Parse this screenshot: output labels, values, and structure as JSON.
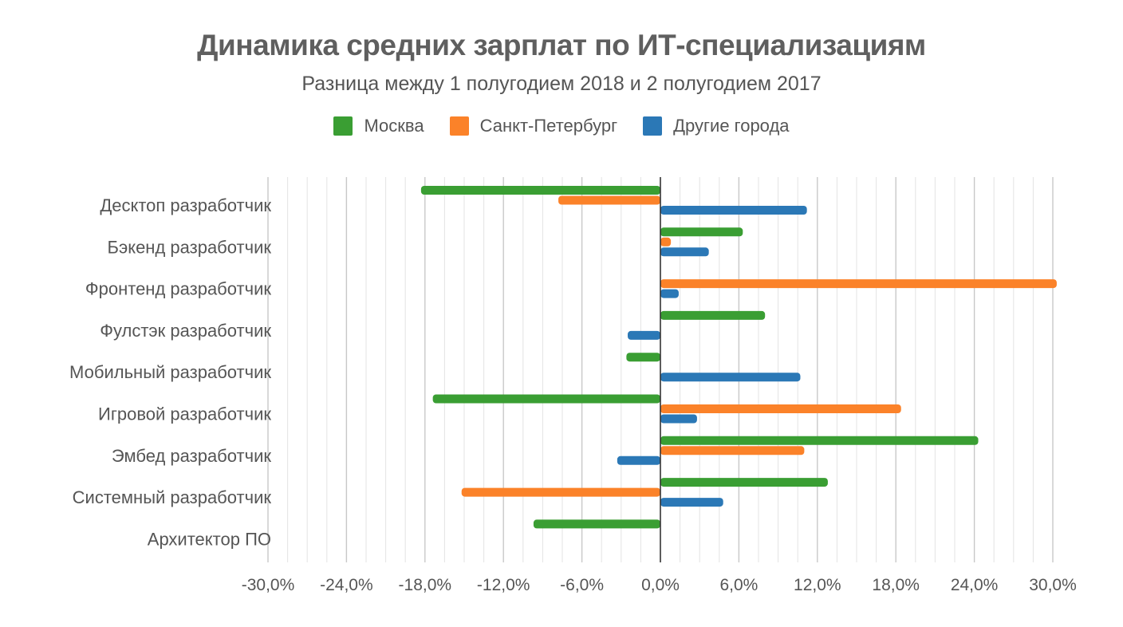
{
  "chart_data": {
    "type": "bar",
    "orientation": "horizontal",
    "title": "Динамика средних зарплат по ИТ-специализациям",
    "subtitle": "Разница между 1 полугодием 2018 и 2 полугодием 2017",
    "categories": [
      "Десктоп разработчик",
      "Бэкенд разработчик",
      "Фронтенд разработчик",
      "Фулстэк разработчик",
      "Мобильный разработчик",
      "Игровой разработчик",
      "Эмбед разработчик",
      "Системный разработчик",
      "Архитектор ПО"
    ],
    "series": [
      {
        "name": "Москва",
        "color": "#3a9e33",
        "values": [
          -18.3,
          6.3,
          null,
          8.0,
          -2.6,
          -17.4,
          24.3,
          12.8,
          -9.7
        ]
      },
      {
        "name": "Санкт-Петербург",
        "color": "#fb8229",
        "values": [
          -7.8,
          0.8,
          30.3,
          null,
          null,
          18.4,
          11.0,
          -15.2,
          null
        ]
      },
      {
        "name": "Другие города",
        "color": "#2b78b6",
        "values": [
          11.2,
          3.7,
          1.4,
          -2.5,
          10.7,
          2.8,
          -3.3,
          4.8,
          null
        ]
      }
    ],
    "xlim": [
      -30,
      30
    ],
    "xticks": [
      "-30,0%",
      "-24,0%",
      "-18,0%",
      "-12,0%",
      "-6,0%",
      "0,0%",
      "6,0%",
      "12,0%",
      "18,0%",
      "24,0%",
      "30,0%"
    ],
    "grid": true,
    "legend": "top-center"
  }
}
